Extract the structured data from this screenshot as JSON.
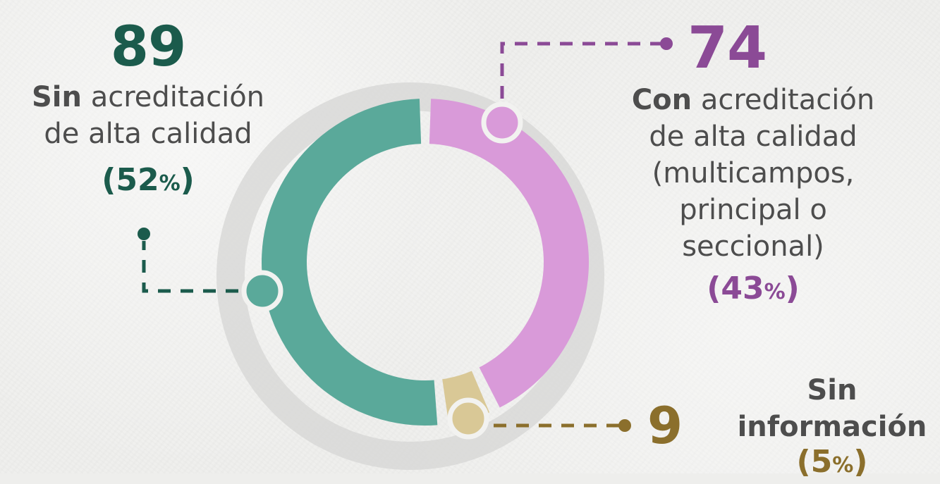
{
  "chart_data": {
    "type": "pie",
    "variant": "donut",
    "slices": [
      {
        "label": "Con acreditación de alta calidad (multicampos, principal o seccional)",
        "value": 74,
        "percent": 43,
        "color": "#d99ad9",
        "dark_color": "#8b4a96"
      },
      {
        "label": "Sin información",
        "value": 9,
        "percent": 5,
        "color": "#d9c896",
        "dark_color": "#8b6f2c"
      },
      {
        "label": "Sin acreditación de alta calidad",
        "value": 89,
        "percent": 52,
        "color": "#5aa99a",
        "dark_color": "#1b5b4c"
      }
    ]
  },
  "labels": {
    "sin_acreditacion": {
      "value": "89",
      "bold": "Sin",
      "rest_line1": "acreditación",
      "line2": "de alta calidad",
      "pct_open": "(52",
      "pct_sym": "%",
      "pct_close": ")"
    },
    "con_acreditacion": {
      "value": "74",
      "bold": "Con",
      "rest_line1": "acreditación",
      "line2": "de alta calidad",
      "line3": "(multicampos,",
      "line4": "principal o",
      "line5": "seccional)",
      "pct_open": "(43",
      "pct_sym": "%",
      "pct_close": ")"
    },
    "sin_informacion": {
      "value": "9",
      "line1": "Sin",
      "line2": "información",
      "pct_open": "(5",
      "pct_sym": "%",
      "pct_close": ")"
    }
  }
}
